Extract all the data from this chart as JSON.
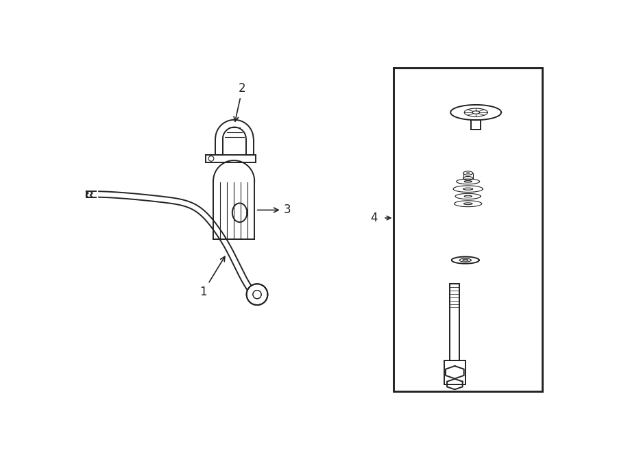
{
  "bg_color": "#ffffff",
  "line_color": "#222222",
  "lw": 1.4,
  "tlw": 0.8,
  "label_fs": 12,
  "fig_width": 9.0,
  "fig_height": 6.61,
  "dpi": 100
}
